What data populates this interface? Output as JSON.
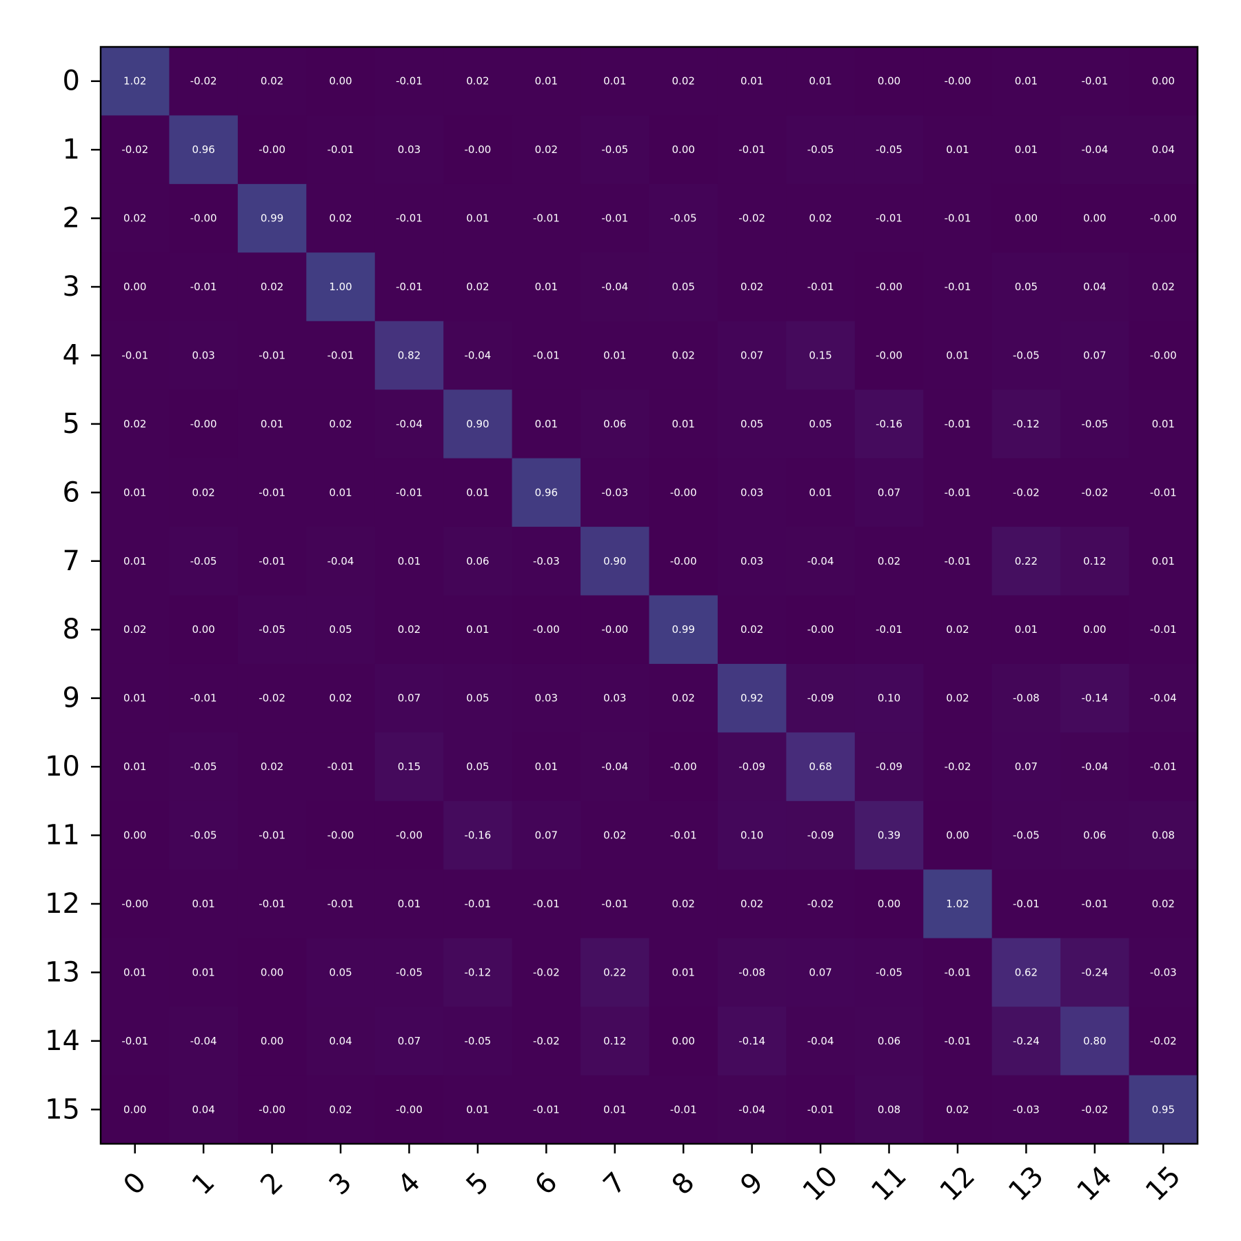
{
  "chart_data": {
    "type": "heatmap",
    "title": "",
    "xlabel": "",
    "ylabel": "",
    "grid": false,
    "legend": "none",
    "x_tick_labels": [
      "0",
      "1",
      "2",
      "3",
      "4",
      "5",
      "6",
      "7",
      "8",
      "9",
      "10",
      "11",
      "12",
      "13",
      "14",
      "15"
    ],
    "y_tick_labels": [
      "0",
      "1",
      "2",
      "3",
      "4",
      "5",
      "6",
      "7",
      "8",
      "9",
      "10",
      "11",
      "12",
      "13",
      "14",
      "15"
    ],
    "colormap": "viridis",
    "color_range": [
      -1,
      3
    ],
    "value_format": "2-decimal",
    "values": [
      [
        1.02,
        -0.02,
        0.02,
        0.0,
        -0.01,
        0.02,
        0.01,
        0.01,
        0.02,
        0.01,
        0.01,
        0.0,
        -0.0,
        0.01,
        -0.01,
        0.0
      ],
      [
        -0.02,
        0.96,
        -0.0,
        -0.01,
        0.03,
        -0.0,
        0.02,
        -0.05,
        0.0,
        -0.01,
        -0.05,
        -0.05,
        0.01,
        0.01,
        -0.04,
        0.04
      ],
      [
        0.02,
        -0.0,
        0.99,
        0.02,
        -0.01,
        0.01,
        -0.01,
        -0.01,
        -0.05,
        -0.02,
        0.02,
        -0.01,
        -0.01,
        0.0,
        0.0,
        -0.0
      ],
      [
        0.0,
        -0.01,
        0.02,
        1.0,
        -0.01,
        0.02,
        0.01,
        -0.04,
        0.05,
        0.02,
        -0.01,
        -0.0,
        -0.01,
        0.05,
        0.04,
        0.02
      ],
      [
        -0.01,
        0.03,
        -0.01,
        -0.01,
        0.82,
        -0.04,
        -0.01,
        0.01,
        0.02,
        0.07,
        0.15,
        -0.0,
        0.01,
        -0.05,
        0.07,
        -0.0
      ],
      [
        0.02,
        -0.0,
        0.01,
        0.02,
        -0.04,
        0.9,
        0.01,
        0.06,
        0.01,
        0.05,
        0.05,
        -0.16,
        -0.01,
        -0.12,
        -0.05,
        0.01
      ],
      [
        0.01,
        0.02,
        -0.01,
        0.01,
        -0.01,
        0.01,
        0.96,
        -0.03,
        -0.0,
        0.03,
        0.01,
        0.07,
        -0.01,
        -0.02,
        -0.02,
        -0.01
      ],
      [
        0.01,
        -0.05,
        -0.01,
        -0.04,
        0.01,
        0.06,
        -0.03,
        0.9,
        -0.0,
        0.03,
        -0.04,
        0.02,
        -0.01,
        0.22,
        0.12,
        0.01
      ],
      [
        0.02,
        0.0,
        -0.05,
        0.05,
        0.02,
        0.01,
        -0.0,
        -0.0,
        0.99,
        0.02,
        -0.0,
        -0.01,
        0.02,
        0.01,
        0.0,
        -0.01
      ],
      [
        0.01,
        -0.01,
        -0.02,
        0.02,
        0.07,
        0.05,
        0.03,
        0.03,
        0.02,
        0.92,
        -0.09,
        0.1,
        0.02,
        -0.08,
        -0.14,
        -0.04
      ],
      [
        0.01,
        -0.05,
        0.02,
        -0.01,
        0.15,
        0.05,
        0.01,
        -0.04,
        -0.0,
        -0.09,
        0.68,
        -0.09,
        -0.02,
        0.07,
        -0.04,
        -0.01
      ],
      [
        0.0,
        -0.05,
        -0.01,
        -0.0,
        -0.0,
        -0.16,
        0.07,
        0.02,
        -0.01,
        0.1,
        -0.09,
        0.39,
        0.0,
        -0.05,
        0.06,
        0.08
      ],
      [
        -0.0,
        0.01,
        -0.01,
        -0.01,
        0.01,
        -0.01,
        -0.01,
        -0.01,
        0.02,
        0.02,
        -0.02,
        0.0,
        1.02,
        -0.01,
        -0.01,
        0.02
      ],
      [
        0.01,
        0.01,
        0.0,
        0.05,
        -0.05,
        -0.12,
        -0.02,
        0.22,
        0.01,
        -0.08,
        0.07,
        -0.05,
        -0.01,
        0.62,
        -0.24,
        -0.03
      ],
      [
        -0.01,
        -0.04,
        0.0,
        0.04,
        0.07,
        -0.05,
        -0.02,
        0.12,
        0.0,
        -0.14,
        -0.04,
        0.06,
        -0.01,
        -0.24,
        0.8,
        -0.02
      ],
      [
        0.0,
        0.04,
        -0.0,
        0.02,
        -0.0,
        0.01,
        -0.01,
        0.01,
        -0.01,
        -0.04,
        -0.01,
        0.08,
        0.02,
        -0.03,
        -0.02,
        0.95
      ]
    ],
    "cell_labels": [
      [
        "1.02",
        "-0.02",
        "0.02",
        "0.00",
        "-0.01",
        "0.02",
        "0.01",
        "0.01",
        "0.02",
        "0.01",
        "0.01",
        "0.00",
        "-0.00",
        "0.01",
        "-0.01",
        "0.00"
      ],
      [
        "-0.02",
        "0.96",
        "-0.00",
        "-0.01",
        "0.03",
        "-0.00",
        "0.02",
        "-0.05",
        "0.00",
        "-0.01",
        "-0.05",
        "-0.05",
        "0.01",
        "0.01",
        "-0.04",
        "0.04"
      ],
      [
        "0.02",
        "-0.00",
        "0.99",
        "0.02",
        "-0.01",
        "0.01",
        "-0.01",
        "-0.01",
        "-0.05",
        "-0.02",
        "0.02",
        "-0.01",
        "-0.01",
        "0.00",
        "0.00",
        "-0.00"
      ],
      [
        "0.00",
        "-0.01",
        "0.02",
        "1.00",
        "-0.01",
        "0.02",
        "0.01",
        "-0.04",
        "0.05",
        "0.02",
        "-0.01",
        "-0.00",
        "-0.01",
        "0.05",
        "0.04",
        "0.02"
      ],
      [
        "-0.01",
        "0.03",
        "-0.01",
        "-0.01",
        "0.82",
        "-0.04",
        "-0.01",
        "0.01",
        "0.02",
        "0.07",
        "0.15",
        "-0.00",
        "0.01",
        "-0.05",
        "0.07",
        "-0.00"
      ],
      [
        "0.02",
        "-0.00",
        "0.01",
        "0.02",
        "-0.04",
        "0.90",
        "0.01",
        "0.06",
        "0.01",
        "0.05",
        "0.05",
        "-0.16",
        "-0.01",
        "-0.12",
        "-0.05",
        "0.01"
      ],
      [
        "0.01",
        "0.02",
        "-0.01",
        "0.01",
        "-0.01",
        "0.01",
        "0.96",
        "-0.03",
        "-0.00",
        "0.03",
        "0.01",
        "0.07",
        "-0.01",
        "-0.02",
        "-0.02",
        "-0.01"
      ],
      [
        "0.01",
        "-0.05",
        "-0.01",
        "-0.04",
        "0.01",
        "0.06",
        "-0.03",
        "0.90",
        "-0.00",
        "0.03",
        "-0.04",
        "0.02",
        "-0.01",
        "0.22",
        "0.12",
        "0.01"
      ],
      [
        "0.02",
        "0.00",
        "-0.05",
        "0.05",
        "0.02",
        "0.01",
        "-0.00",
        "-0.00",
        "0.99",
        "0.02",
        "-0.00",
        "-0.01",
        "0.02",
        "0.01",
        "0.00",
        "-0.01"
      ],
      [
        "0.01",
        "-0.01",
        "-0.02",
        "0.02",
        "0.07",
        "0.05",
        "0.03",
        "0.03",
        "0.02",
        "0.92",
        "-0.09",
        "0.10",
        "0.02",
        "-0.08",
        "-0.14",
        "-0.04"
      ],
      [
        "0.01",
        "-0.05",
        "0.02",
        "-0.01",
        "0.15",
        "0.05",
        "0.01",
        "-0.04",
        "-0.00",
        "-0.09",
        "0.68",
        "-0.09",
        "-0.02",
        "0.07",
        "-0.04",
        "-0.01"
      ],
      [
        "0.00",
        "-0.05",
        "-0.01",
        "-0.00",
        "-0.00",
        "-0.16",
        "0.07",
        "0.02",
        "-0.01",
        "0.10",
        "-0.09",
        "0.39",
        "0.00",
        "-0.05",
        "0.06",
        "0.08"
      ],
      [
        "-0.00",
        "0.01",
        "-0.01",
        "-0.01",
        "0.01",
        "-0.01",
        "-0.01",
        "-0.01",
        "0.02",
        "0.02",
        "-0.02",
        "0.00",
        "1.02",
        "-0.01",
        "-0.01",
        "0.02"
      ],
      [
        "0.01",
        "0.01",
        "0.00",
        "0.05",
        "-0.05",
        "-0.12",
        "-0.02",
        "0.22",
        "0.01",
        "-0.08",
        "0.07",
        "-0.05",
        "-0.01",
        "0.62",
        "-0.24",
        "-0.03"
      ],
      [
        "-0.01",
        "-0.04",
        "0.00",
        "0.04",
        "0.07",
        "-0.05",
        "-0.02",
        "0.12",
        "0.00",
        "-0.14",
        "-0.04",
        "0.06",
        "-0.01",
        "-0.24",
        "0.80",
        "-0.02"
      ],
      [
        "0.00",
        "0.04",
        "-0.00",
        "0.02",
        "-0.00",
        "0.01",
        "-0.01",
        "0.01",
        "-0.01",
        "-0.04",
        "-0.01",
        "0.08",
        "0.02",
        "-0.03",
        "-0.02",
        "0.95"
      ]
    ]
  }
}
